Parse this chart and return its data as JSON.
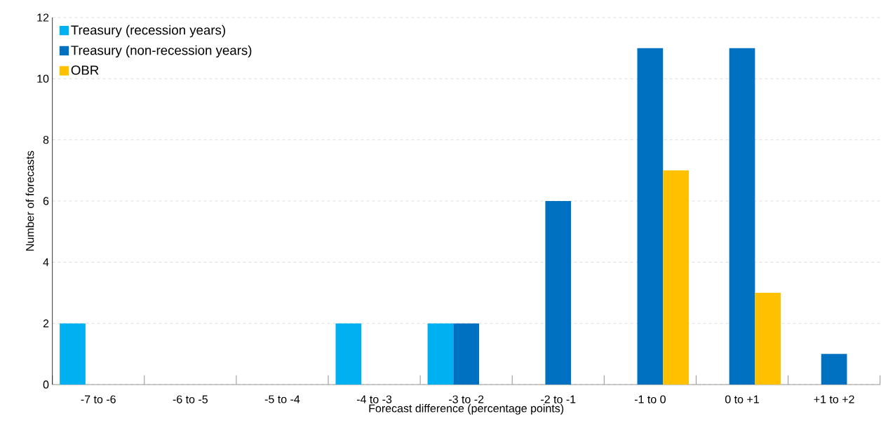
{
  "chart_data": {
    "type": "bar",
    "xlabel": "Forecast difference (percentage points)",
    "ylabel": "Number of forecasts",
    "categories": [
      "-7 to -6",
      "-6 to -5",
      "-5 to -4",
      "-4 to -3",
      "-3 to -2",
      "-2 to -1",
      "-1 to 0",
      "0 to +1",
      "+1 to +2"
    ],
    "series": [
      {
        "name": "Treasury (recession years)",
        "color": "#00b0f0",
        "values": [
          2,
          0,
          0,
          2,
          2,
          0,
          0,
          0,
          0
        ]
      },
      {
        "name": "Treasury (non-recession years)",
        "color": "#0070c0",
        "values": [
          0,
          0,
          0,
          0,
          2,
          6,
          11,
          11,
          1
        ]
      },
      {
        "name": "OBR",
        "color": "#ffc000",
        "values": [
          0,
          0,
          0,
          0,
          0,
          0,
          7,
          3,
          0
        ]
      }
    ],
    "ylim": [
      0,
      12
    ],
    "yticks": [
      0,
      2,
      4,
      6,
      8,
      10,
      12
    ],
    "grid": "y",
    "legend": "top left"
  }
}
